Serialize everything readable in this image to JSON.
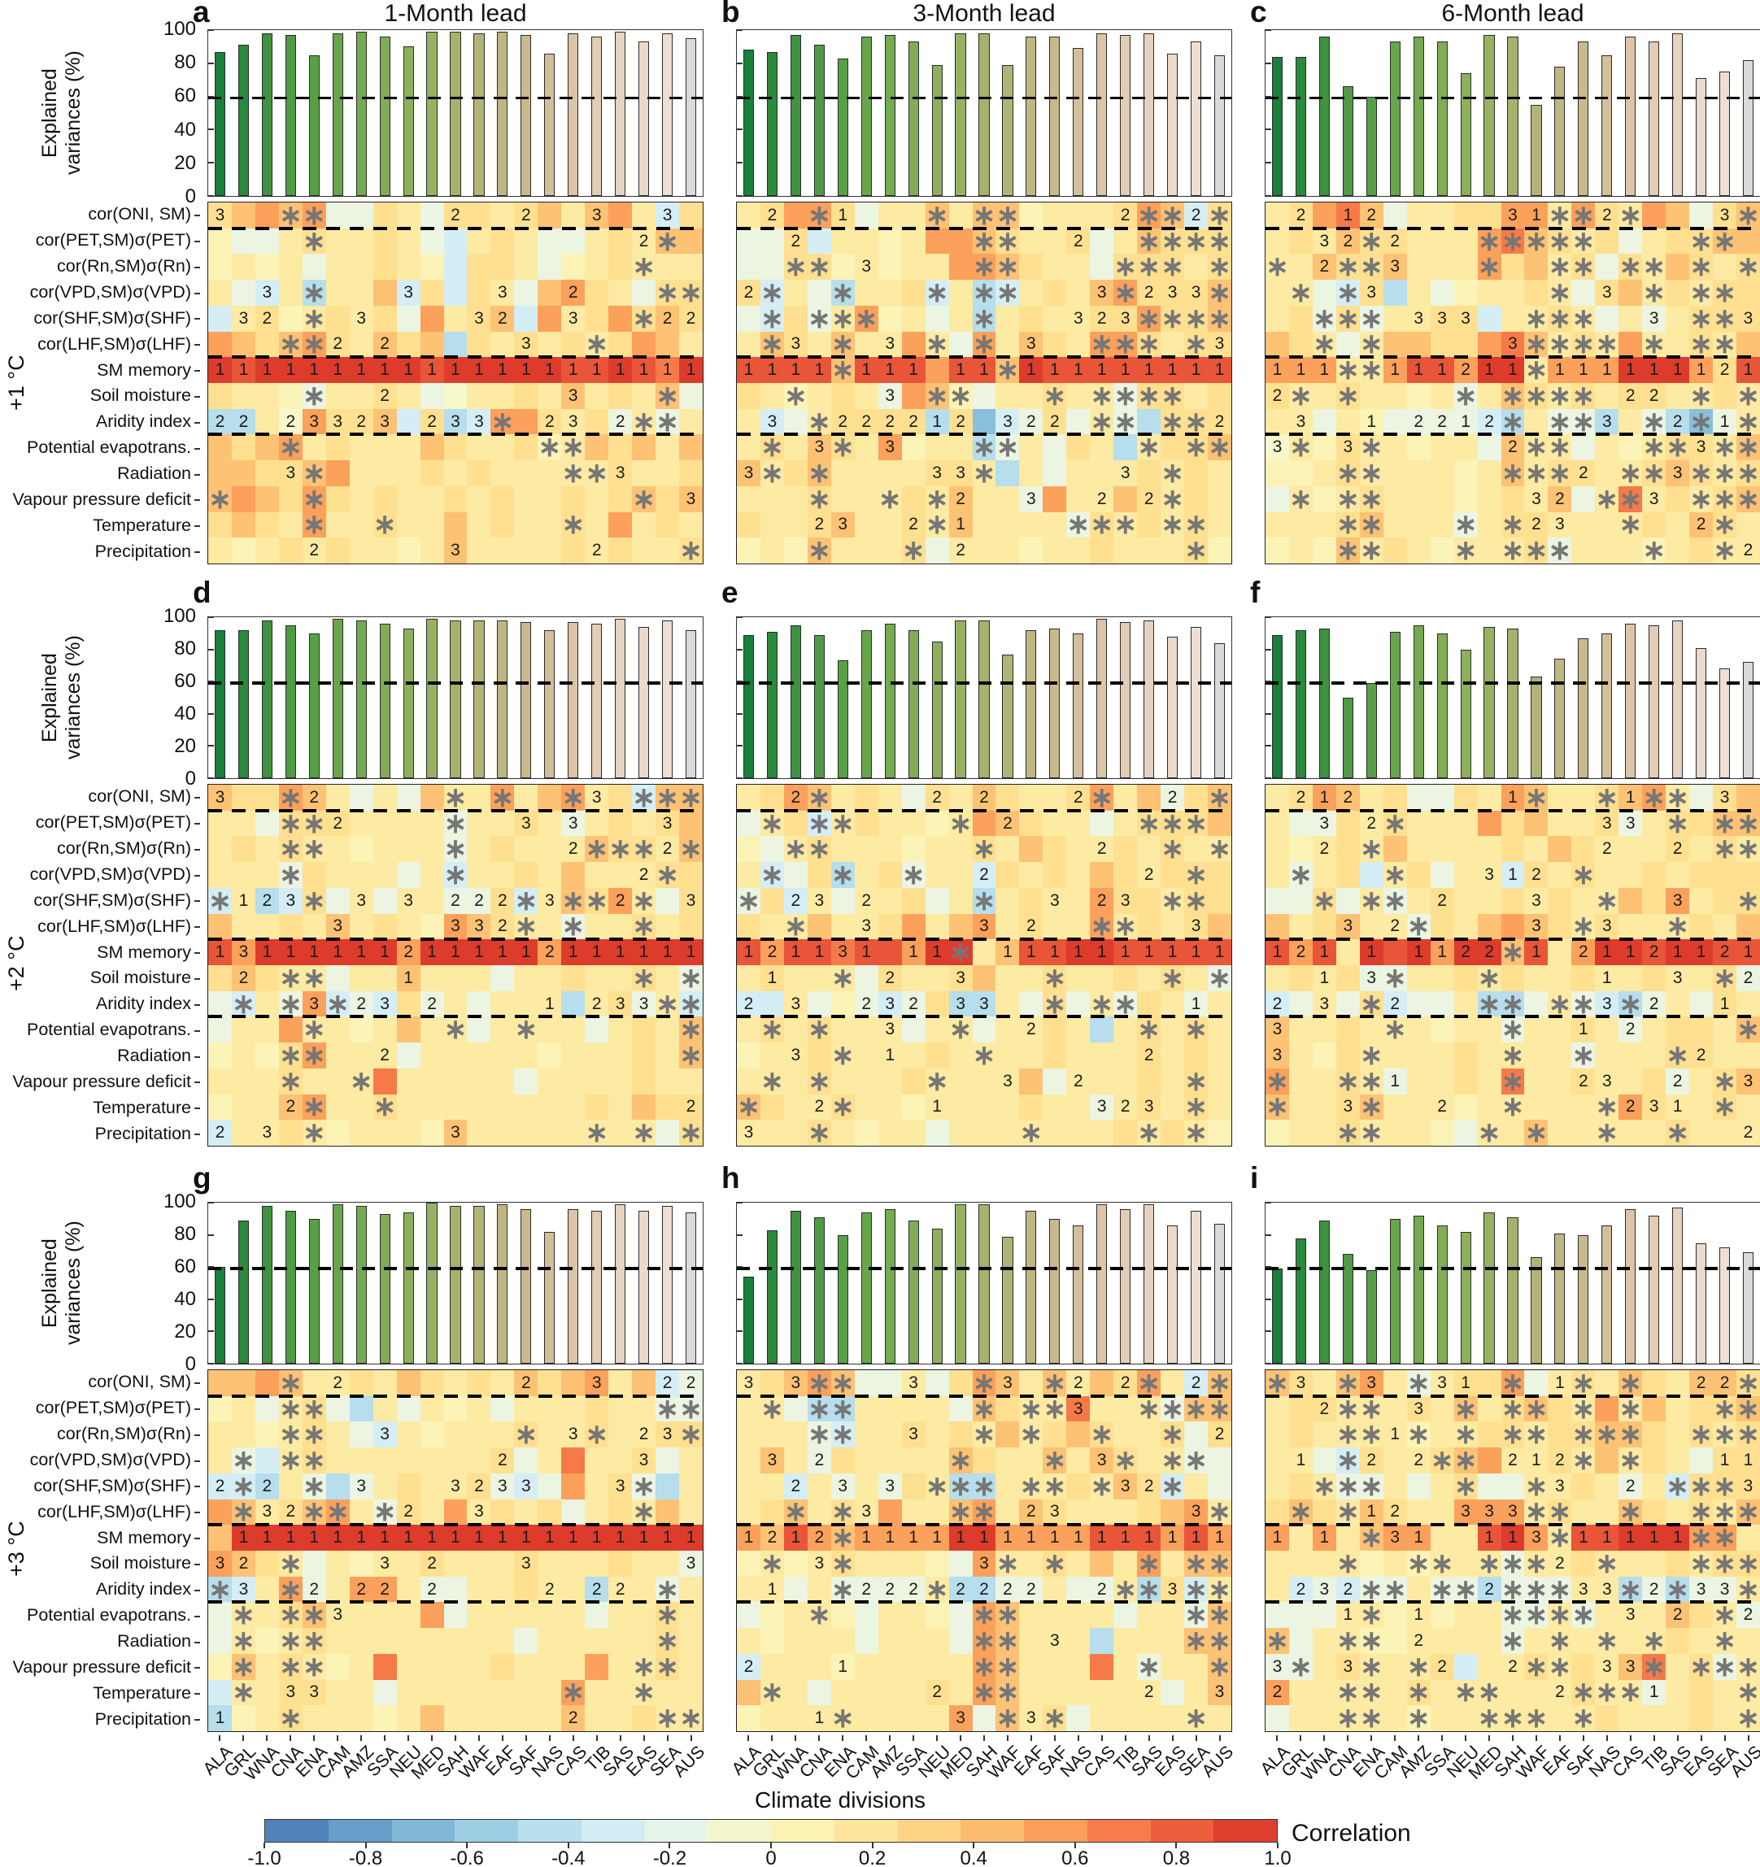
{
  "figure": {
    "column_titles": [
      "1-Month lead",
      "3-Month lead",
      "6-Month lead"
    ],
    "row_group_labels": [
      "+1 °C",
      "+2 °C",
      "+3 °C"
    ],
    "y_axis": {
      "label_line1": "Explained",
      "label_line2": "variances (%)",
      "ticks": [
        0,
        20,
        40,
        60,
        80,
        100
      ],
      "dashed_line_pct": 60
    },
    "x_axis_label": "Climate divisions",
    "colorbar": {
      "label": "Correlation",
      "ticks": [
        -1.0,
        -0.8,
        -0.6,
        -0.4,
        -0.2,
        0,
        0.2,
        0.4,
        0.6,
        0.8,
        1.0
      ]
    }
  },
  "chart_data": {
    "type": "heatmap",
    "categories": [
      "ALA",
      "GRL",
      "WNA",
      "CNA",
      "ENA",
      "CAM",
      "AMZ",
      "SSA",
      "NEU",
      "MED",
      "SAH",
      "WAF",
      "EAF",
      "SAF",
      "NAS",
      "CAS",
      "TIB",
      "SAS",
      "EAS",
      "SEA",
      "AUS"
    ],
    "predictor_rows": [
      "cor(ONI, SM)",
      "cor(PET,SM)σ(PET)",
      "cor(Rn,SM)σ(Rn)",
      "cor(VPD,SM)σ(VPD)",
      "cor(SHF,SM)σ(SHF)",
      "cor(LHF,SM)σ(LHF)",
      "SM memory",
      "Soil moisture",
      "Aridity index",
      "Potential evapotrans.",
      "Radiation",
      "Vapour pressure deficit",
      "Temperature",
      "Precipitation"
    ],
    "bar_axis": {
      "label": "Explained variances (%)",
      "ylim": [
        0,
        100
      ],
      "dashed_line": 60
    },
    "colormap_range": [
      -1,
      1
    ],
    "value_scale": {
      "a": -0.65,
      "b": -0.45,
      "c": -0.3,
      "d": -0.15,
      "e": -0.05,
      "f": 0.05,
      "g": 0.15,
      "h": 0.25,
      "i": 0.4,
      "j": 0.55,
      "k": 0.7,
      "l": 0.85,
      "m": 0.95
    },
    "bar_colors": [
      "#158139",
      "#2a8a3c",
      "#3e9240",
      "#4f9a44",
      "#57a046",
      "#68a64c",
      "#74aa50",
      "#80ad55",
      "#8cb05b",
      "#99b163",
      "#a6b26c",
      "#b2b476",
      "#bfb782",
      "#c9ba8d",
      "#d3bf9a",
      "#dbc5a7",
      "#e2ccb4",
      "#e7d3c1",
      "#ebd9cb",
      "#eedfd4",
      "#d9dbda"
    ],
    "panels": [
      {
        "letter": "a",
        "lead": "1-Month lead",
        "warming": "+1 °C",
        "explained_variance_pct": [
          87,
          91,
          98,
          97,
          85,
          98,
          99,
          96,
          90,
          99,
          99,
          98,
          99,
          97,
          86,
          98,
          96,
          99,
          93,
          98,
          95
        ],
        "heatmap_values": [
          "hijijddhgdhhghigijgch",
          "fddghgghgdcghgddghgii",
          "fgfgdgghgfchhgdfghggg",
          "gdcgbggichchgdijhgdhh",
          "cghfghghdjghicjghjhih",
          "jihijhgihibhghghghjig",
          "mlmmmmmmmlmmmmmllmlkm",
          "hggfdgghgdegghgighgid",
          "bbgejhhichbcjjhghdgdg",
          "ihijghgggihgghfgihigi",
          "iihhijggghghggggghggh",
          "ijihjhghgghghgghghihi",
          "hihgjgghggighgghgjghg",
          "gfghghggfgigggghghggh"
        ],
        "heatmap_annotations": [
          "3..**.....2..2..3..3.",
          "....*.............2*.",
          "..................*..",
          "..3.*...3...3..2...**",
          ".32.*.3....32..3..*22",
          "...**2.2.....3..*....",
          "111111111111111111111",
          "....*..2.......3...*.",
          "22.23323.233*.23.2**.",
          "...*..........**.....",
          "...3*..........**3...",
          "*...*.............*.3",
          "....*..*.......*.....",
          "....2.....3.....2...*"
        ]
      },
      {
        "letter": "b",
        "lead": "3-Month lead",
        "warming": "+1 °C",
        "explained_variance_pct": [
          88,
          87,
          97,
          91,
          83,
          96,
          97,
          93,
          79,
          98,
          98,
          79,
          96,
          96,
          89,
          98,
          97,
          98,
          86,
          93,
          85
        ],
        "heatmap_values": [
          "ghjjhdggigiifggghjich",
          "ddhcggfgjjihgghdgihhh",
          "ddhhfgfggjjihggdhhhgh",
          "hcgdbgghcgbcghgijhhhi",
          "dchdgjfgdgbghgghhjhhi",
          "gihgiggjgdjgihgjjhghh",
          "llllillljllimllllllll",
          "hgfghgdjifdgghggdhhgh",
          "gcdghhhhbhacdhdgdbhhh",
          "ghgihgjfggbdgdhgbghhi",
          "ighigggghhgbgdggghghg",
          "ggghggghgiggdjggihghg",
          "hgghigghgiggggdhghghg",
          "fgfiggghdgggfgghggghf"
        ],
        "heatmap_annotations": [
          ".2.*1...*.**....2**2*",
          "..2.......**..2..****",
          "..**.3....**....***.*",
          "2*..*...*.**...3*233*",
          ".*.***....*...323****",
          ".*3.*.3.*.*.3..***.*3",
          "1111*111.11*111111111",
          "..*...3.**...*.****..",
          ".3.*222212.322.**.**2",
          ".*.3*.3...**.....*.**",
          "3*.*....33*.....3.*..",
          "...*..*.*2..3..2.2*..",
          "...23..2*1....***.**.",
          "...*...*.2.........*."
        ]
      },
      {
        "letter": "c",
        "lead": "6-Month lead",
        "warming": "+1 °C",
        "explained_variance_pct": [
          84,
          84,
          96,
          66,
          60,
          93,
          96,
          93,
          74,
          97,
          96,
          55,
          78,
          93,
          85,
          96,
          93,
          98,
          71,
          75,
          82
        ],
        "heatmap_values": [
          "ghjkidgghhjjgjhgjidhi",
          "ghgihhgggjkihghdghhii",
          "ggihhigggjhighdhgihgh",
          "ggdchbgdfgghgdhighghh",
          "ghdhdgghhcgghgdgdghhh",
          "ihgdgiihhjkighgjgghgi",
          "jjjggjlljmmgjjjmmmjhl",
          "hgghggfgdgihghghhgghg",
          "ggdgfddddcbgddbgdbadg",
          "egfhggfggdiggdgfghhgi",
          "ffghggggfgighhgghihgh",
          "dgfghgggfghgidgkghghi",
          "ggghigggdghhgggghgihg",
          "fgfighgfggghdgggfghgg"
        ],
        "heatmap_annotations": [
          ".2.12.....31**2*...3*",
          "..32*2...*****....**.",
          "*.2**3...*..**.**.*.*",
          ".*.*3.......*.3.*.**.",
          "..***.333..***..3.**3",
          "..*.*.....3****.*.**.",
          "111**111211*111111121",
          "2*.*....*.****.22.*.*",
          ".3..1.2212*.**3.*2*1*",
          "3*.3*.....2**...**3**",
          "...**.....***2.**3***",
          ".*.**......32.**3.***",
          "...**...*.*23..*..2*.",
          "...**...*.***...*..*2"
        ]
      },
      {
        "letter": "d",
        "lead": "1-Month lead",
        "warming": "+2 °C",
        "explained_variance_pct": [
          92,
          92,
          98,
          95,
          90,
          99,
          98,
          96,
          93,
          99,
          98,
          98,
          98,
          97,
          92,
          97,
          96,
          99,
          94,
          98,
          92
        ],
        "heatmap_values": [
          "ihhjigdgdiggjgijghcii",
          "ggdhhhggggdgghgdghghi",
          "ghghggfgggdghgggihhgi",
          "gggdhgggdgcgghgiggghh",
          "cgbchdgdggddhcgihjgdh",
          "igghgighgfjihggdgghgh",
          "ljmmmmmmjmmmmmjmmmmmm",
          "hihggdggigggdgghgghgd",
          "dcgdjcdchdgdgggbghdgc",
          "dggjggfgiggdggggdghgi",
          "fgfhjgggdgggggfggghgi",
          "ggghgggkgggggdgggghgg",
          "fggijgghgggggggghgihh",
          "cgghgfgggfiggggggggdh"
        ],
        "heatmap_annotations": [
          "3..*2.....*.*..*3.***",
          "...**2....*..3.3...3.",
          "...**.....*....2***2*",
          "...*......*.......2*.",
          "*123*.3.3.222*3**2*.3",
          ".....3....332*.*..*..",
          "131111112111112111111",
          ".2.**...1.........*.*",
          ".*.*3*23.2....1.233**",
          "....*.....*..*......*",
          "...**..2............*",
          "...*..*..............",
          "...2*..*............2",
          "2.3.*.....3.....*.*.*"
        ]
      },
      {
        "letter": "e",
        "lead": "3-Month lead",
        "warming": "+2 °C",
        "explained_variance_pct": [
          89,
          91,
          95,
          89,
          73,
          92,
          96,
          92,
          85,
          98,
          98,
          77,
          92,
          93,
          90,
          99,
          97,
          98,
          88,
          94,
          84
        ],
        "heatmap_values": [
          "ghjighgdhgihgghjgidhi",
          "dghcghggfgjihggdghhhi",
          "fdghgggfgghgihgghghgg",
          "gcdhbghdggchghgihghhh",
          "dhcgdgghdgbghggjhhghh",
          "hggigghjgijghggjghghi",
          "ljllklljmmgillmmlllll",
          "ghgggdhgghigghgghghgd",
          "ccgdfdcdhbbgdhdgdhgdg",
          "ghghgggdggdgghgbghghg",
          "fgghgggghgggghggghghg",
          "ggghggghggggidggghghg",
          "ihgghggfgggghggdghghg",
          "ggghgfggdggggggghghgf"
        ],
        "heatmap_annotations": [
          "..2*....2.2...2*..2.*",
          ".*.**....*.2.....***.",
          "..**......*....2..*.*",
          ".*..*..*..2......2.*.",
          "*.23.2....*..3.23.**.",
          "..*..3....3.2..**..3.",
          "121131.11*.1111111111",
          ".1..*.2..3...*....*.*",
          "2.3..232.33..*.**..1.",
          ".*.*..3..*..2....*.*.",
          "..3.*.1...*......2...",
          ".*.*....*..3..2....*.",
          "*..2*...1......323.*.",
          "3..*........*....*.*."
        ]
      },
      {
        "letter": "f",
        "lead": "6-Month lead",
        "warming": "+2 °C",
        "explained_variance_pct": [
          89,
          92,
          93,
          50,
          59,
          91,
          95,
          90,
          80,
          94,
          93,
          63,
          74,
          87,
          90,
          96,
          95,
          98,
          81,
          68,
          72
        ],
        "heatmap_values": [
          "ghjighddhgjigghijgdhi",
          "gddhghgggjhigghdghhii",
          "gfghgigggghgihggghghg",
          "gdghcghdggchghgghghhh",
          "ddhdgdghgghghggihjghh",
          "ighiggdhgijihghggghgi",
          "ljlgmlmjmmilgjmmlmmll",
          "ghghddgghghgghgghgghd",
          "cdgdhcddgbbdgdcbdgdhg",
          "igghgggfggdgghgdghhgi",
          "igfhgggghggggdggghhgg",
          "jgghgdgghgkgghgghdghi",
          "igghigggfggggggjhgghg",
          "fgghgggfdggiggggghggg"
        ],
        "heatmap_annotations": [
          ".212......1*..*1**.3.",
          "..3.2*........33.*.**",
          "..2.*.........2..2.**",
          ".*...*...312.*.......",
          "..*.**.2...3..*..3..*",
          "...3.2*....3.*3..*...",
          "121.1.1122*1.21121121",
          "..1.3*...*....1..3.*2",
          "2.3.*2...**.**3*2..1.",
          "3....*....*..1.2....*",
          "3...*.....*..*...*2..",
          "*..**1....*..23..2.*3",
          "*..3*..2..*...*231.*.",
          "...**....*.*..*..*..2"
        ]
      },
      {
        "letter": "g",
        "lead": "1-Month lead",
        "warming": "+3 °C",
        "explained_variance_pct": [
          60,
          89,
          98,
          95,
          90,
          99,
          98,
          93,
          94,
          100,
          98,
          98,
          99,
          96,
          82,
          96,
          95,
          99,
          95,
          98,
          94
        ],
        "heatmap_values": [
          "iijigghgihghgihijgicd",
          "fgdghdbgdgfgdggghggdd",
          "ggfghgdcgfggghgghgghh",
          "gdcghggggggghdgkgghdg",
          "ccbgdbdghgghdcdjghdbg",
          "jighijgdhgjghghdghgig",
          "immmmmmmmmmmmmmmmmmmm",
          "jihgdgfgghggghggghggd",
          "bcgjdgjjgddgghggbggdg",
          "dgghiggggjdgggggdgghg",
          "dgfghggggggggdggggghg",
          "fighgfgkgggghgggjgghg",
          "cgghhggdgggggggjggggg",
          "bfghgggfgigggggigghgg"
        ],
        "heatmap_annotations": [
          "...*.2.......2..3..22",
          "...**..............**",
          "...**..3.....*.3*.23*",
          ".*.**.......2.....3..",
          "2*2.*.3...3233...3*..",
          ".*32**.*2..3......*..",
          ".11111111111111111111",
          "32.*...3.2...3......3",
          "*3.*2.22.2....2.22.*.",
          ".*.**3.............*.",
          ".*.**..............*.",
          ".*.**.............**.",
          ".*.33..........*..*..",
          "1..*...........2...**"
        ]
      },
      {
        "letter": "h",
        "lead": "3-Month lead",
        "warming": "+3 °C",
        "explained_variance_pct": [
          54,
          83,
          95,
          91,
          80,
          94,
          96,
          89,
          84,
          99,
          99,
          79,
          95,
          90,
          86,
          99,
          96,
          99,
          86,
          95,
          87
        ],
        "heatmap_values": [
          "ghijiddgdhjigigihjgci",
          "ggdbbggggdihggkgggdii",
          "gggdcgghghgighihgghdh",
          "gigdhggggihggigihggdd",
          "ggcgdgdhgbbggghgihcgd",
          "ghighgjggijgihggghijg",
          "jiljijjjjmmjjjjllljlj",
          "fgfghgggfdjgghgigjgii",
          "ggdgddddgbbddgddgbhcg",
          "dfggfdggfdjiggggdggdi",
          "gfgggdgggdjigggbgggii",
          "cgggfgggggjigggkgdggi",
          "iggdgggghgjiggggggdgi",
          "fggggggggjdighdgggggg"
        ],
        "heatmap_annotations": [
          "3.3**..3..*3.*2.2*.2*",
          ".*.**.....*.**3..****",
          "...**..3..*.*..*..*.2",
          ".3.2.....*...*.3*.**.",
          "..2.3.3.***.**.*32*..",
          "..*.*3...**.23.....3*",
          "1212*1111111111111111",
          ".*.3*.....3*.*...*.**",
          ".1..*222*2222..2**3**",
          "...*......**.......**",
          "..........**.3.....**",
          "2...1.....**.....*..*",
          ".*......2.**.....2..3",
          "...1*....3.*3*.....*."
        ]
      },
      {
        "letter": "i",
        "lead": "6-Month lead",
        "warming": "+3 °C",
        "explained_variance_pct": [
          59,
          78,
          89,
          68,
          58,
          90,
          92,
          86,
          82,
          94,
          91,
          66,
          81,
          80,
          86,
          96,
          92,
          97,
          75,
          72,
          69
        ],
        "heatmap_values": [
          "ihgijgdghhjdghgihgiih",
          "ghhggghgighihgjgighhi",
          "ghggggfgghhghhiihghgh",
          "ggdchgghijgghgighgdhh",
          "ghgddgdghddgghgdgchhh",
          "hihgihggjjjghggihghgi",
          "jgjgijjgglmjgllmmmjjg",
          "ggggfgfgggdgghggghghh",
          "gcdcddgddbdddggbdbddg",
          "dddggfgfggddgdgggihgd",
          "idggffggggdgggggghggg",
          "ddghggghcgghghgikghdg",
          "jggggghgggggghggdghgg",
          "dgggggfggggggghggghgg"
        ],
        "heatmap_annotations": [
          "*3.*3.*31.*.1*.*..22*",
          "..2**.3.*.**.*.*...**",
          "...**1*.*.**.***..***",
          ".1.*2.2**.212*.*...11",
          "..***...*..*3..2.***3",
          ".*.*12..333**..*..***",
          "1.1.*31..113*11111**.",
          "...*..**.***2.*...***",
          ".232**.**2***33*2*33*",
          "...1*.1...****.3.2.*2",
          "*..**.2...*.*.*.*..*.",
          "3*.3*.*2..2**.33*.***",
          "2..**.*.**..2***1...*",
          "...**.*..***.*......*"
        ]
      }
    ]
  }
}
